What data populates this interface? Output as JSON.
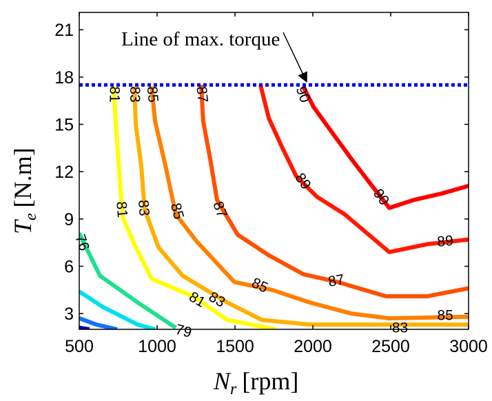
{
  "chart_data": {
    "type": "contour",
    "xlabel": "N_r [rpm]",
    "xlabel_main": "N",
    "xlabel_sub": "r",
    "xlabel_unit": "[rpm]",
    "ylabel": "T_e [N.m]",
    "ylabel_main": "T",
    "ylabel_sub": "e",
    "ylabel_unit": "[N.m]",
    "xlim": [
      500,
      3000
    ],
    "ylim": [
      2,
      22.1
    ],
    "xticks": [
      "500",
      "1000",
      "1500",
      "2000",
      "2500",
      "3000"
    ],
    "xtick_values": [
      500,
      1000,
      1500,
      2000,
      2500,
      3000
    ],
    "yticks": [
      "3",
      "6",
      "9",
      "12",
      "15",
      "18",
      "21"
    ],
    "ytick_values": [
      3,
      6,
      9,
      12,
      15,
      18,
      21
    ],
    "grid": false,
    "max_torque_line": {
      "torque": 17.5,
      "color": "#0000ee",
      "style": "dotted"
    },
    "annotation": {
      "text": "Line of max. torque",
      "arrow_from": [
        1810,
        21.0
      ],
      "arrow_to": [
        1960,
        17.7
      ]
    },
    "series": [
      {
        "level": 90,
        "color": "#ff0000",
        "points": [
          [
            1938,
            17.4
          ],
          [
            2005,
            16.1
          ],
          [
            2115,
            14.6
          ],
          [
            2248,
            12.8
          ],
          [
            2380,
            11.1
          ],
          [
            2491,
            9.7
          ],
          [
            2646,
            10.2
          ],
          [
            2823,
            10.6
          ],
          [
            3000,
            11.1
          ]
        ]
      },
      {
        "level": 89,
        "color": "#ff1a00",
        "points": [
          [
            1664,
            17.5
          ],
          [
            1717,
            15.4
          ],
          [
            1805,
            13.5
          ],
          [
            1894,
            11.7
          ],
          [
            2027,
            10.4
          ],
          [
            2204,
            9.3
          ],
          [
            2491,
            6.9
          ],
          [
            2735,
            7.4
          ],
          [
            3000,
            7.7
          ]
        ]
      },
      {
        "level": 87,
        "color": "#ff5000",
        "points": [
          [
            1283,
            17.5
          ],
          [
            1296,
            15.2
          ],
          [
            1341,
            12.8
          ],
          [
            1385,
            10.2
          ],
          [
            1518,
            8.0
          ],
          [
            1717,
            6.7
          ],
          [
            1938,
            5.5
          ],
          [
            2160,
            5.0
          ],
          [
            2469,
            4.1
          ],
          [
            2735,
            4.1
          ],
          [
            3000,
            4.6
          ]
        ]
      },
      {
        "level": 85,
        "color": "#ff8000",
        "points": [
          [
            965,
            17.4
          ],
          [
            987,
            15.2
          ],
          [
            1053,
            12.4
          ],
          [
            1120,
            9.3
          ],
          [
            1252,
            7.6
          ],
          [
            1496,
            5.0
          ],
          [
            1739,
            4.5
          ],
          [
            1982,
            3.7
          ],
          [
            2248,
            3.0
          ],
          [
            2491,
            2.7
          ],
          [
            3000,
            2.8
          ]
        ]
      },
      {
        "level": 83,
        "color": "#ffb000",
        "points": [
          [
            854,
            17.4
          ],
          [
            863,
            15.0
          ],
          [
            898,
            12.4
          ],
          [
            920,
            9.6
          ],
          [
            1009,
            7.2
          ],
          [
            1164,
            5.4
          ],
          [
            1451,
            3.7
          ],
          [
            1673,
            2.6
          ],
          [
            1982,
            2.3
          ],
          [
            2469,
            2.3
          ],
          [
            3000,
            2.3
          ]
        ]
      },
      {
        "level": 81,
        "color": "#ffff00",
        "points": [
          [
            721,
            17.4
          ],
          [
            735,
            15.0
          ],
          [
            757,
            12.0
          ],
          [
            779,
            9.1
          ],
          [
            854,
            7.4
          ],
          [
            965,
            5.2
          ],
          [
            1230,
            4.1
          ],
          [
            1451,
            2.6
          ],
          [
            1761,
            2.0
          ]
        ]
      },
      {
        "level": 76,
        "color": "#20e090",
        "points": [
          [
            500,
            8.1
          ],
          [
            544,
            7.2
          ],
          [
            633,
            5.4
          ],
          [
            876,
            3.7
          ],
          [
            1120,
            2.1
          ]
        ]
      },
      {
        "level": null,
        "color": "#00e0f0",
        "points": [
          [
            500,
            4.4
          ],
          [
            655,
            3.4
          ],
          [
            876,
            2.3
          ],
          [
            987,
            2.0
          ]
        ]
      },
      {
        "level": null,
        "color": "#1070ff",
        "points": [
          [
            500,
            2.7
          ],
          [
            611,
            2.3
          ],
          [
            743,
            2.0
          ]
        ]
      },
      {
        "level": null,
        "color": "#0000c0",
        "points": [
          [
            500,
            2.1
          ],
          [
            566,
            2.0
          ]
        ]
      }
    ],
    "contour_labels": [
      {
        "text": "90",
        "at": [
          1938,
          16.9
        ],
        "angle": 70
      },
      {
        "text": "90",
        "at": [
          2440,
          10.4
        ],
        "angle": 55
      },
      {
        "text": "89",
        "at": [
          1938,
          11.4
        ],
        "angle": 55
      },
      {
        "text": "89",
        "at": [
          2850,
          7.6
        ],
        "angle": -5
      },
      {
        "text": "87",
        "at": [
          1290,
          16.9
        ],
        "angle": 85
      },
      {
        "text": "87",
        "at": [
          1405,
          9.6
        ],
        "angle": 70
      },
      {
        "text": "87",
        "at": [
          2150,
          5.1
        ],
        "angle": -10
      },
      {
        "text": "85",
        "at": [
          972,
          16.9
        ],
        "angle": 85
      },
      {
        "text": "85",
        "at": [
          1130,
          9.5
        ],
        "angle": 75
      },
      {
        "text": "85",
        "at": [
          1660,
          4.8
        ],
        "angle": 25
      },
      {
        "text": "85",
        "at": [
          2850,
          2.9
        ],
        "angle": 0
      },
      {
        "text": "83",
        "at": [
          858,
          16.9
        ],
        "angle": 90
      },
      {
        "text": "83",
        "at": [
          915,
          9.7
        ],
        "angle": 85
      },
      {
        "text": "83",
        "at": [
          1385,
          3.9
        ],
        "angle": 30
      },
      {
        "text": "83",
        "at": [
          2560,
          2.1
        ],
        "angle": 0
      },
      {
        "text": "81",
        "at": [
          727,
          16.9
        ],
        "angle": 90
      },
      {
        "text": "81",
        "at": [
          775,
          9.6
        ],
        "angle": 85
      },
      {
        "text": "81",
        "at": [
          1258,
          3.9
        ],
        "angle": 30
      },
      {
        "text": "76",
        "at": [
          520,
          7.5
        ],
        "angle": 70
      },
      {
        "text": "79",
        "at": [
          1170,
          1.9
        ],
        "angle": 15
      }
    ]
  }
}
